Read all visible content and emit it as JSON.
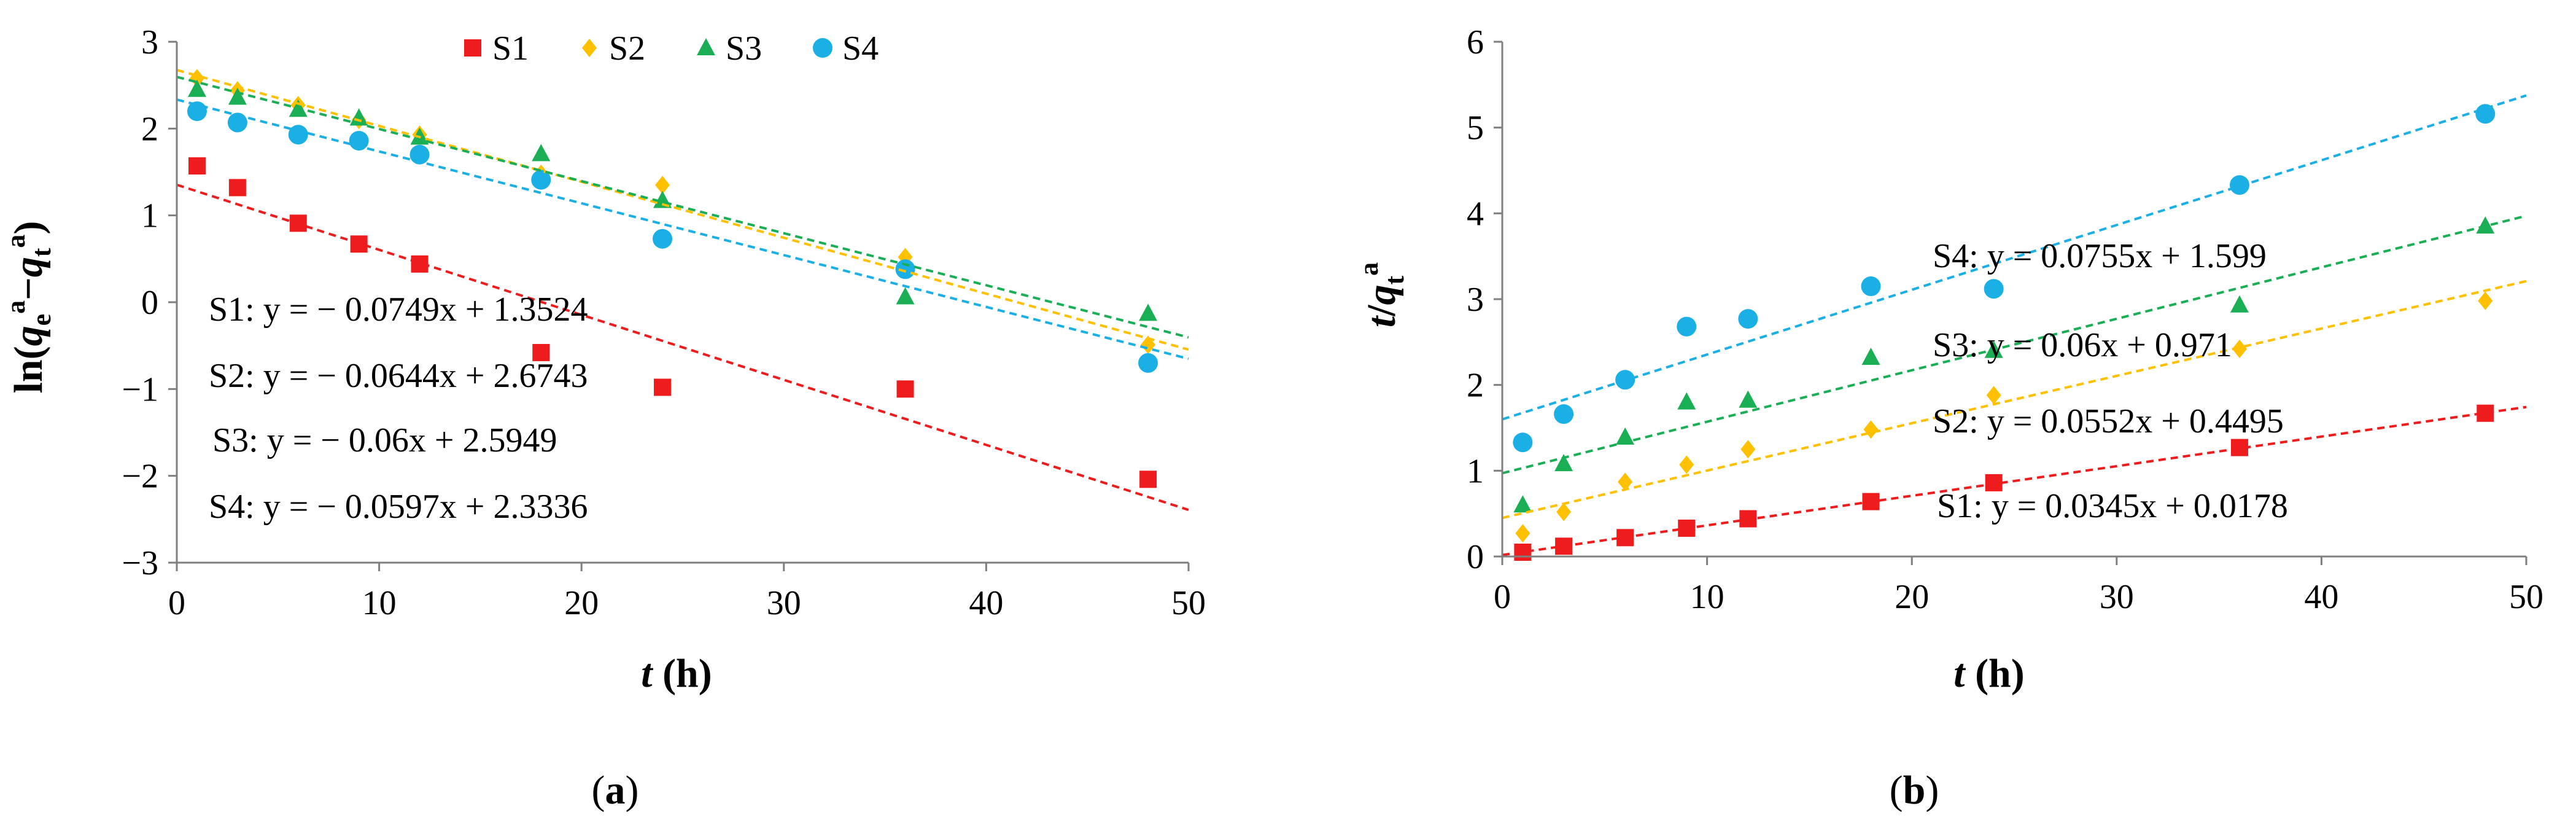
{
  "figure": {
    "panels": [
      {
        "label_open": "(",
        "label_letter": "a",
        "label_close": ")",
        "xlabel_var": "t",
        "xlabel_unit": " (h)",
        "ylabel": {
          "prefix": "ln(",
          "q1": "q",
          "sub1": "e",
          "sup1": "a",
          "dash": "−",
          "q2": "q",
          "sub2": "t",
          "sup2": "a",
          "suffix": ")"
        }
      },
      {
        "label_open": "(",
        "label_letter": "b",
        "label_close": ")",
        "xlabel_var": "t",
        "xlabel_unit": " (h)",
        "ylabel": {
          "t": "t",
          "slash": "/",
          "q": "q",
          "sub": "t",
          "sup": "a"
        }
      }
    ]
  },
  "chart_data": [
    {
      "type": "scatter",
      "title": "",
      "xlabel": "t (h)",
      "ylabel": "ln(qe^a − qt^a)",
      "xlim": [
        0,
        50
      ],
      "ylim": [
        -3,
        3
      ],
      "xticks": [
        0,
        10,
        20,
        30,
        40,
        50
      ],
      "yticks": [
        -3,
        -2,
        -1,
        0,
        1,
        2,
        3
      ],
      "ytick_labels": [
        "−3",
        "−2",
        "−1",
        "0",
        "1",
        "2",
        "3"
      ],
      "legend_position": "top-center",
      "series": [
        {
          "name": "S1",
          "color": "#ee1c1c",
          "marker": "square",
          "x": [
            1,
            3,
            6,
            9,
            12,
            18,
            24,
            36,
            48
          ],
          "y": [
            1.57,
            1.32,
            0.91,
            0.67,
            0.44,
            -0.58,
            -0.98,
            -1.0,
            -2.04
          ],
          "fit": {
            "slope": -0.0749,
            "intercept": 1.3524
          },
          "equation": "S1: y = − 0.0749x + 1.3524"
        },
        {
          "name": "S2",
          "color": "#ffc000",
          "marker": "diamond",
          "x": [
            1,
            3,
            6,
            9,
            12,
            18,
            24,
            36,
            48
          ],
          "y": [
            2.58,
            2.44,
            2.27,
            2.1,
            1.93,
            1.48,
            1.35,
            0.52,
            -0.49
          ],
          "fit": {
            "slope": -0.0644,
            "intercept": 2.6743
          },
          "equation": "S2: y = − 0.0644x + 2.6743"
        },
        {
          "name": "S3",
          "color": "#1aaf54",
          "marker": "triangle",
          "x": [
            1,
            3,
            6,
            9,
            12,
            18,
            24,
            36,
            48
          ],
          "y": [
            2.45,
            2.36,
            2.22,
            2.12,
            1.9,
            1.71,
            1.17,
            0.06,
            -0.13
          ],
          "fit": {
            "slope": -0.06,
            "intercept": 2.5949
          },
          "equation": "S3: y = − 0.06x + 2.5949"
        },
        {
          "name": "S4",
          "color": "#1ab0e6",
          "marker": "circle",
          "x": [
            1,
            3,
            6,
            9,
            12,
            18,
            24,
            36,
            48
          ],
          "y": [
            2.2,
            2.07,
            1.93,
            1.86,
            1.7,
            1.41,
            0.73,
            0.38,
            -0.7
          ],
          "fit": {
            "slope": -0.0597,
            "intercept": 2.3336
          },
          "equation": "S4: y = − 0.0597x + 2.3336"
        }
      ]
    },
    {
      "type": "scatter",
      "title": "",
      "xlabel": "t (h)",
      "ylabel": "t/qt^a",
      "xlim": [
        0,
        50
      ],
      "ylim": [
        0,
        6
      ],
      "xticks": [
        0,
        10,
        20,
        30,
        40,
        50
      ],
      "yticks": [
        0,
        1,
        2,
        3,
        4,
        5,
        6
      ],
      "ytick_labels": [
        "0",
        "1",
        "2",
        "3",
        "4",
        "5",
        "6"
      ],
      "series": [
        {
          "name": "S1",
          "color": "#ee1c1c",
          "marker": "square",
          "x": [
            1,
            3,
            6,
            9,
            12,
            18,
            24,
            36,
            48
          ],
          "y": [
            0.05,
            0.12,
            0.22,
            0.33,
            0.44,
            0.64,
            0.86,
            1.27,
            1.67
          ],
          "fit": {
            "slope": 0.0345,
            "intercept": 0.0178
          },
          "equation": "S1: y = 0.0345x + 0.0178"
        },
        {
          "name": "S2",
          "color": "#ffc000",
          "marker": "diamond",
          "x": [
            1,
            3,
            6,
            9,
            12,
            18,
            24,
            36,
            48
          ],
          "y": [
            0.27,
            0.52,
            0.87,
            1.07,
            1.25,
            1.48,
            1.88,
            2.42,
            2.98
          ],
          "fit": {
            "slope": 0.0552,
            "intercept": 0.4495
          },
          "equation": "S2: y = 0.0552x + 0.4495"
        },
        {
          "name": "S3",
          "color": "#1aaf54",
          "marker": "triangle",
          "x": [
            1,
            3,
            6,
            9,
            12,
            18,
            24,
            36,
            48
          ],
          "y": [
            0.6,
            1.08,
            1.39,
            1.8,
            1.82,
            2.32,
            2.4,
            2.93,
            3.85
          ],
          "fit": {
            "slope": 0.06,
            "intercept": 0.971
          },
          "equation": "S3: y = 0.06x + 0.971"
        },
        {
          "name": "S4",
          "color": "#1ab0e6",
          "marker": "circle",
          "x": [
            1,
            3,
            6,
            9,
            12,
            18,
            24,
            36,
            48
          ],
          "y": [
            1.33,
            1.66,
            2.06,
            2.68,
            2.77,
            3.15,
            3.12,
            4.33,
            5.16
          ],
          "fit": {
            "slope": 0.0755,
            "intercept": 1.599
          },
          "equation": "S4: y = 0.0755x + 1.599"
        }
      ]
    }
  ]
}
